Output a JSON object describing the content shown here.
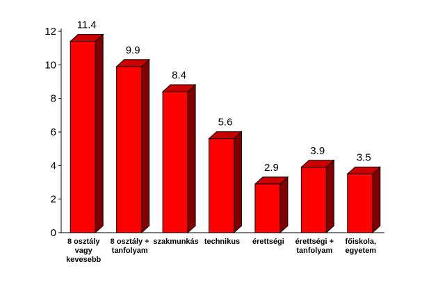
{
  "chart_data": {
    "type": "bar",
    "categories": [
      [
        "8 osztály",
        "vagy",
        "kevesebb"
      ],
      [
        "8 osztály +",
        "tanfolyam"
      ],
      [
        "szakmunkás"
      ],
      [
        "technikus"
      ],
      [
        "érettségi"
      ],
      [
        "érettségi +",
        "tanfolyam"
      ],
      [
        "főiskola,",
        "egyetem"
      ]
    ],
    "values": [
      11.4,
      9.9,
      8.4,
      5.6,
      2.9,
      3.9,
      3.5
    ],
    "value_labels": [
      "11.4",
      "9.9",
      "8.4",
      "5.6",
      "2.9",
      "3.9",
      "3.5"
    ],
    "y_ticks": [
      0,
      2,
      4,
      6,
      8,
      10,
      12
    ],
    "ylim": [
      0,
      12
    ],
    "title": "",
    "xlabel": "",
    "ylabel": "",
    "grid": false,
    "legend": "none",
    "colors": {
      "front": "#ff0000",
      "top": "#cc0000",
      "side": "#800000",
      "outline": "#000000"
    }
  }
}
